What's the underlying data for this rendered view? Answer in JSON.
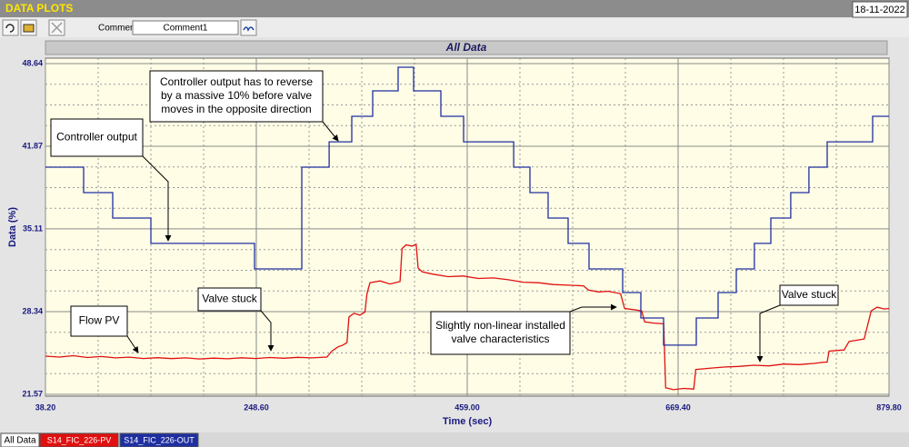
{
  "app": {
    "title": "DATA PLOTS",
    "date": "18-11-2022",
    "comment_label": "Comment",
    "comment_value": "Comment1",
    "tab": "All Data"
  },
  "chart_data": {
    "type": "line",
    "title": "All Data",
    "x_label": "Time (sec)",
    "y_label": "Data (%)",
    "xlim": [
      38.2,
      879.8
    ],
    "ylim": [
      21.57,
      48.64
    ],
    "xticks": [
      {
        "value": 38.2,
        "label": "38.20"
      },
      {
        "value": 248.6,
        "label": "248.60"
      },
      {
        "value": 459,
        "label": "459.00"
      },
      {
        "value": 669.4,
        "label": "669.40"
      },
      {
        "value": 879.8,
        "label": "879.80"
      }
    ],
    "yticks": [
      21.57,
      28.34,
      35.11,
      41.87,
      48.64
    ],
    "grid": true,
    "series": [
      {
        "name": "S14_FIC_226-PV",
        "color": "#e01010",
        "x": [
          38.2,
          52,
          66,
          80,
          94,
          108,
          122,
          136,
          150,
          164,
          178,
          192,
          206,
          220,
          234,
          248,
          262,
          276,
          290,
          304,
          319,
          324,
          330,
          335,
          339,
          341,
          346,
          352,
          357,
          359,
          362,
          372,
          382,
          392,
          394,
          398,
          404,
          408,
          410,
          414,
          425,
          440,
          455,
          470,
          485,
          500,
          515,
          530,
          545,
          560,
          575,
          580,
          590,
          600,
          612,
          616,
          625,
          633,
          636,
          645,
          655,
          657,
          665,
          675,
          685,
          687,
          700,
          715,
          730,
          745,
          760,
          775,
          790,
          805,
          815,
          818,
          820,
          835,
          840,
          855,
          862,
          868,
          875,
          879.8
        ],
        "values": [
          24.69,
          24.62,
          24.73,
          24.58,
          24.66,
          24.55,
          24.61,
          24.5,
          24.57,
          24.49,
          24.55,
          24.46,
          24.53,
          24.48,
          24.56,
          24.5,
          24.58,
          24.52,
          24.6,
          24.55,
          24.62,
          25.1,
          25.45,
          25.6,
          25.8,
          27.9,
          28.2,
          28.05,
          28.3,
          29.8,
          30.7,
          30.85,
          30.6,
          30.8,
          33.5,
          33.8,
          33.7,
          33.85,
          31.9,
          31.6,
          31.4,
          31.2,
          31.25,
          31.05,
          31.1,
          30.95,
          30.75,
          30.7,
          30.55,
          30.5,
          30.45,
          30.1,
          29.95,
          30,
          29.8,
          28.6,
          28.5,
          28.4,
          27.5,
          27.4,
          27.35,
          22.1,
          21.95,
          22.05,
          22,
          23.6,
          23.7,
          23.8,
          23.85,
          23.95,
          23.9,
          24.05,
          24,
          24.1,
          24.2,
          24.2,
          25.1,
          25.2,
          25.9,
          26.1,
          28.4,
          28.7,
          28.55,
          28.6
        ]
      },
      {
        "name": "S14_FIC_226-OUT",
        "color": "#1f2fa0",
        "x": [
          38.2,
          76.3,
          76.3,
          105.3,
          105.3,
          143.4,
          143.4,
          246.8,
          246.8,
          293.9,
          293.9,
          321.2,
          321.2,
          343.8,
          343.8,
          364.7,
          364.7,
          390.1,
          390.1,
          405.5,
          405.5,
          432.7,
          432.7,
          455.4,
          455.4,
          505.3,
          505.3,
          521.6,
          521.6,
          539.7,
          539.7,
          559.7,
          559.7,
          580.5,
          580.5,
          614.1,
          614.1,
          632.2,
          632.2,
          654.9,
          654.9,
          687.5,
          687.5,
          709.3,
          709.3,
          727.4,
          727.4,
          745.5,
          745.5,
          761.9,
          761.9,
          781.8,
          781.8,
          799.9,
          799.9,
          818.1,
          818.1,
          863.5,
          863.5,
          879.8
        ],
        "values": [
          40.16,
          40.16,
          38.08,
          38.08,
          36,
          36,
          33.92,
          33.92,
          31.83,
          31.83,
          40.16,
          40.16,
          42.24,
          42.24,
          44.33,
          44.33,
          46.41,
          46.41,
          48.34,
          48.34,
          46.41,
          46.41,
          44.33,
          44.33,
          42.24,
          42.24,
          40.16,
          40.16,
          38.08,
          38.08,
          36,
          36,
          33.92,
          33.92,
          31.83,
          31.83,
          29.9,
          29.9,
          27.82,
          27.82,
          25.59,
          25.59,
          27.82,
          27.82,
          29.9,
          29.9,
          31.83,
          31.83,
          33.92,
          33.92,
          36,
          36,
          38.08,
          38.08,
          40.16,
          40.16,
          42.24,
          42.24,
          44.33,
          44.33
        ]
      }
    ],
    "annotations": [
      {
        "lines": [
          "Controller output"
        ]
      },
      {
        "lines": [
          "Controller output has to reverse",
          "by a massive 10% before valve",
          "moves in the opposite direction"
        ]
      },
      {
        "lines": [
          "Flow PV"
        ]
      },
      {
        "lines": [
          "Valve stuck"
        ]
      },
      {
        "lines": [
          "Slightly non-linear installed",
          "valve characteristics"
        ]
      },
      {
        "lines": [
          "Valve stuck"
        ]
      }
    ]
  }
}
